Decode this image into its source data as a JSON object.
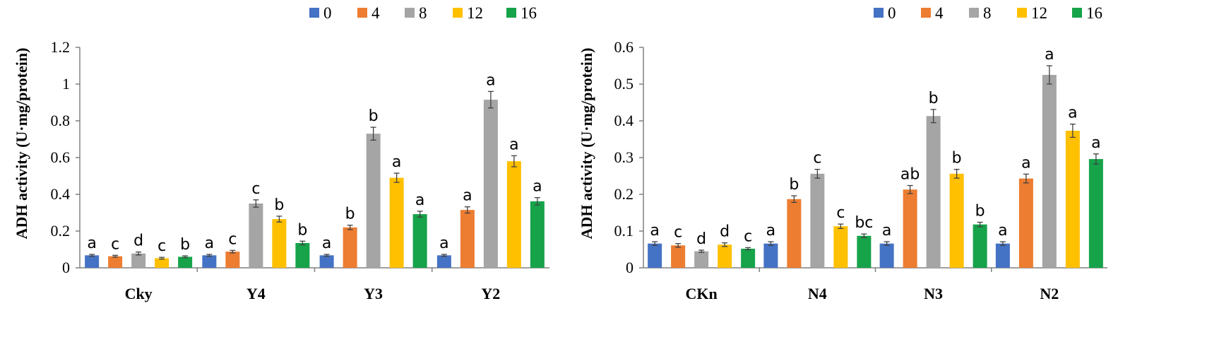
{
  "colors": {
    "0": "#4472C4",
    "4": "#ED7D31",
    "8": "#A5A5A5",
    "12": "#FFC000",
    "16": "#16A34A",
    "axis": "#808080",
    "error": "#404040"
  },
  "chart_data": [
    {
      "type": "bar",
      "ylabel": "ADH activity (U·mg/protein)",
      "ylim": [
        0,
        1.2
      ],
      "yticks": [
        "0",
        "0.2",
        "0.4",
        "0.6",
        "0.8",
        "1",
        "1.2"
      ],
      "ytick_values": [
        0,
        0.2,
        0.4,
        0.6,
        0.8,
        1.0,
        1.2
      ],
      "categories": [
        "Cky",
        "Y4",
        "Y3",
        "Y2"
      ],
      "legend_position": "top-right",
      "series": [
        {
          "name": "0",
          "values": [
            0.068,
            0.068,
            0.068,
            0.068
          ],
          "errors": [
            0.005,
            0.005,
            0.005,
            0.005
          ],
          "letters": [
            "a",
            "a",
            "a",
            "a"
          ]
        },
        {
          "name": "4",
          "values": [
            0.063,
            0.088,
            0.22,
            0.315
          ],
          "errors": [
            0.005,
            0.007,
            0.012,
            0.017
          ],
          "letters": [
            "c",
            "c",
            "b",
            "a"
          ]
        },
        {
          "name": "8",
          "values": [
            0.078,
            0.35,
            0.73,
            0.915
          ],
          "errors": [
            0.008,
            0.02,
            0.035,
            0.045
          ],
          "letters": [
            "d",
            "c",
            "b",
            "a"
          ]
        },
        {
          "name": "12",
          "values": [
            0.052,
            0.265,
            0.49,
            0.58
          ],
          "errors": [
            0.005,
            0.016,
            0.025,
            0.03
          ],
          "letters": [
            "c",
            "b",
            "a",
            "a"
          ]
        },
        {
          "name": "16",
          "values": [
            0.06,
            0.135,
            0.292,
            0.362
          ],
          "errors": [
            0.005,
            0.01,
            0.016,
            0.02
          ],
          "letters": [
            "b",
            "b",
            "a",
            "a"
          ]
        }
      ]
    },
    {
      "type": "bar",
      "ylabel": "ADH activity (U·mg/protein)",
      "ylim": [
        0,
        0.6
      ],
      "yticks": [
        "0",
        "0.1",
        "0.2",
        "0.3",
        "0.4",
        "0.5",
        "0.6"
      ],
      "ytick_values": [
        0,
        0.1,
        0.2,
        0.3,
        0.4,
        0.5,
        0.6
      ],
      "categories": [
        "CKn",
        "N4",
        "N3",
        "N2"
      ],
      "legend_position": "top-right",
      "series": [
        {
          "name": "0",
          "values": [
            0.066,
            0.066,
            0.066,
            0.066
          ],
          "errors": [
            0.005,
            0.005,
            0.005,
            0.005
          ],
          "letters": [
            "a",
            "a",
            "a",
            "a"
          ]
        },
        {
          "name": "4",
          "values": [
            0.061,
            0.187,
            0.213,
            0.243
          ],
          "errors": [
            0.005,
            0.009,
            0.011,
            0.012
          ],
          "letters": [
            "c",
            "b",
            "ab",
            "a"
          ]
        },
        {
          "name": "8",
          "values": [
            0.045,
            0.256,
            0.413,
            0.525
          ],
          "errors": [
            0.003,
            0.012,
            0.018,
            0.025
          ],
          "letters": [
            "d",
            "c",
            "b",
            "a"
          ]
        },
        {
          "name": "12",
          "values": [
            0.063,
            0.113,
            0.256,
            0.373
          ],
          "errors": [
            0.005,
            0.006,
            0.012,
            0.018
          ],
          "letters": [
            "d",
            "c",
            "b",
            "a"
          ]
        },
        {
          "name": "16",
          "values": [
            0.052,
            0.087,
            0.118,
            0.296
          ],
          "errors": [
            0.003,
            0.005,
            0.006,
            0.014
          ],
          "letters": [
            "c",
            "bc",
            "b",
            "a"
          ]
        }
      ]
    }
  ]
}
